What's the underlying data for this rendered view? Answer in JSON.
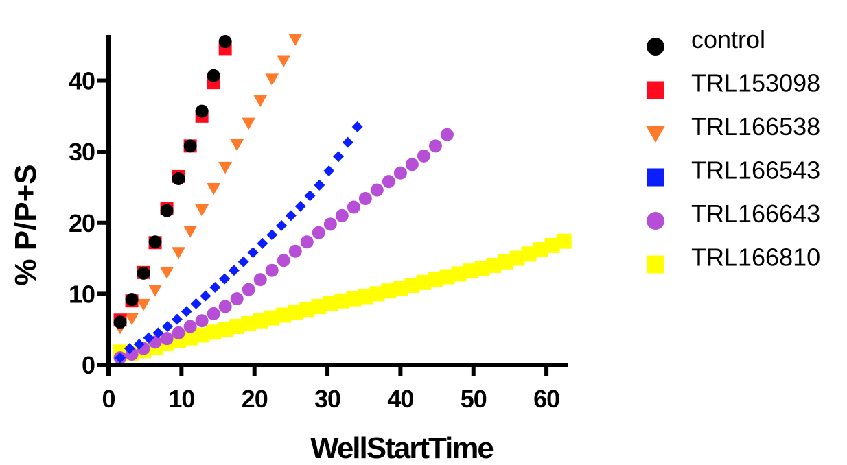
{
  "chart_data": {
    "type": "scatter",
    "title": "",
    "xlabel": "WellStartTime",
    "ylabel": "% P/P+S",
    "xlim": [
      0,
      63
    ],
    "ylim": [
      0,
      47
    ],
    "x_ticks": [
      0,
      10,
      20,
      30,
      40,
      50,
      60
    ],
    "y_ticks": [
      0,
      10,
      20,
      30,
      40
    ],
    "grid": false,
    "legend_position": "right",
    "series": [
      {
        "name": "control",
        "marker": "circle",
        "color": "#000000",
        "x": [
          1.6,
          3.2,
          4.8,
          6.4,
          8.0,
          9.6,
          11.2,
          12.8,
          14.4,
          16.0
        ],
        "y": [
          6.0,
          9.2,
          12.9,
          17.3,
          21.7,
          26.2,
          30.8,
          35.7,
          40.7,
          45.5
        ]
      },
      {
        "name": "TRL153098",
        "marker": "square",
        "color": "#ff0a1e",
        "x": [
          1.6,
          3.2,
          4.8,
          6.4,
          8.0,
          9.6,
          11.2,
          12.8,
          14.4,
          16.0
        ],
        "y": [
          6.3,
          9.0,
          13.0,
          17.2,
          22.0,
          26.5,
          30.8,
          35.0,
          39.7,
          44.5
        ]
      },
      {
        "name": "TRL166538",
        "marker": "triangle-down",
        "color": "#ff7a2a",
        "x": [
          1.6,
          3.2,
          4.8,
          6.4,
          8.0,
          9.6,
          11.2,
          12.8,
          14.4,
          16.0,
          17.6,
          19.2,
          20.8,
          22.4,
          24.0,
          25.6
        ],
        "y": [
          5.2,
          6.5,
          8.5,
          10.5,
          13.0,
          15.8,
          18.8,
          21.8,
          24.8,
          27.8,
          31.0,
          34.0,
          37.2,
          40.2,
          42.8,
          45.8
        ]
      },
      {
        "name": "TRL166543",
        "marker": "diamond",
        "color": "#0a1eff",
        "x": [
          1.6,
          2.9,
          4.2,
          5.5,
          6.8,
          8.1,
          9.4,
          10.7,
          12.0,
          13.3,
          14.6,
          15.9,
          17.2,
          18.5,
          19.8,
          21.1,
          22.4,
          23.7,
          25.0,
          26.3,
          27.6,
          28.9,
          30.2,
          31.5,
          32.8,
          34.1
        ],
        "y": [
          1.0,
          2.3,
          2.9,
          3.8,
          4.5,
          5.4,
          6.4,
          7.5,
          8.6,
          9.7,
          10.9,
          12.1,
          13.3,
          14.5,
          15.8,
          17.1,
          18.3,
          19.6,
          21.0,
          22.3,
          23.8,
          25.3,
          27.3,
          29.3,
          31.3,
          33.5
        ]
      },
      {
        "name": "TRL166643",
        "marker": "circle",
        "color": "#b64fd6",
        "x": [
          1.6,
          3.2,
          4.8,
          6.4,
          8.0,
          9.6,
          11.2,
          12.8,
          14.4,
          16.0,
          17.6,
          19.2,
          20.8,
          22.4,
          24.0,
          25.6,
          27.2,
          28.8,
          30.4,
          32.0,
          33.6,
          35.2,
          36.8,
          38.4,
          40.0,
          41.6,
          43.2,
          44.8,
          46.4
        ],
        "y": [
          1.0,
          1.5,
          2.3,
          3.2,
          3.7,
          4.5,
          5.4,
          6.2,
          7.2,
          8.2,
          9.3,
          10.6,
          12.0,
          13.3,
          14.7,
          16.0,
          17.3,
          18.6,
          19.8,
          21.0,
          22.2,
          23.4,
          24.6,
          25.8,
          27.0,
          28.2,
          29.4,
          30.8,
          32.4
        ]
      },
      {
        "name": "TRL166810",
        "marker": "square",
        "color": "#ffff00",
        "x": [
          1.6,
          3.2,
          4.8,
          6.4,
          8.0,
          9.6,
          11.2,
          12.8,
          14.4,
          16.0,
          17.6,
          19.2,
          20.8,
          22.4,
          24.0,
          25.6,
          27.2,
          28.8,
          30.4,
          32.0,
          33.6,
          35.2,
          36.8,
          38.4,
          40.0,
          41.6,
          43.2,
          44.8,
          46.4,
          48.0,
          49.6,
          51.2,
          52.8,
          54.4,
          56.0,
          57.6,
          59.2,
          60.8,
          62.4
        ],
        "y": [
          1.8,
          1.6,
          2.0,
          2.5,
          3.0,
          3.4,
          3.8,
          4.2,
          4.6,
          5.0,
          5.4,
          5.8,
          6.2,
          6.6,
          7.0,
          7.4,
          7.8,
          8.2,
          8.6,
          9.0,
          9.3,
          9.6,
          10.0,
          10.4,
          10.8,
          11.2,
          11.6,
          12.0,
          12.4,
          12.8,
          13.2,
          13.6,
          14.0,
          14.5,
          15.0,
          15.6,
          16.2,
          16.8,
          17.4
        ]
      }
    ]
  }
}
